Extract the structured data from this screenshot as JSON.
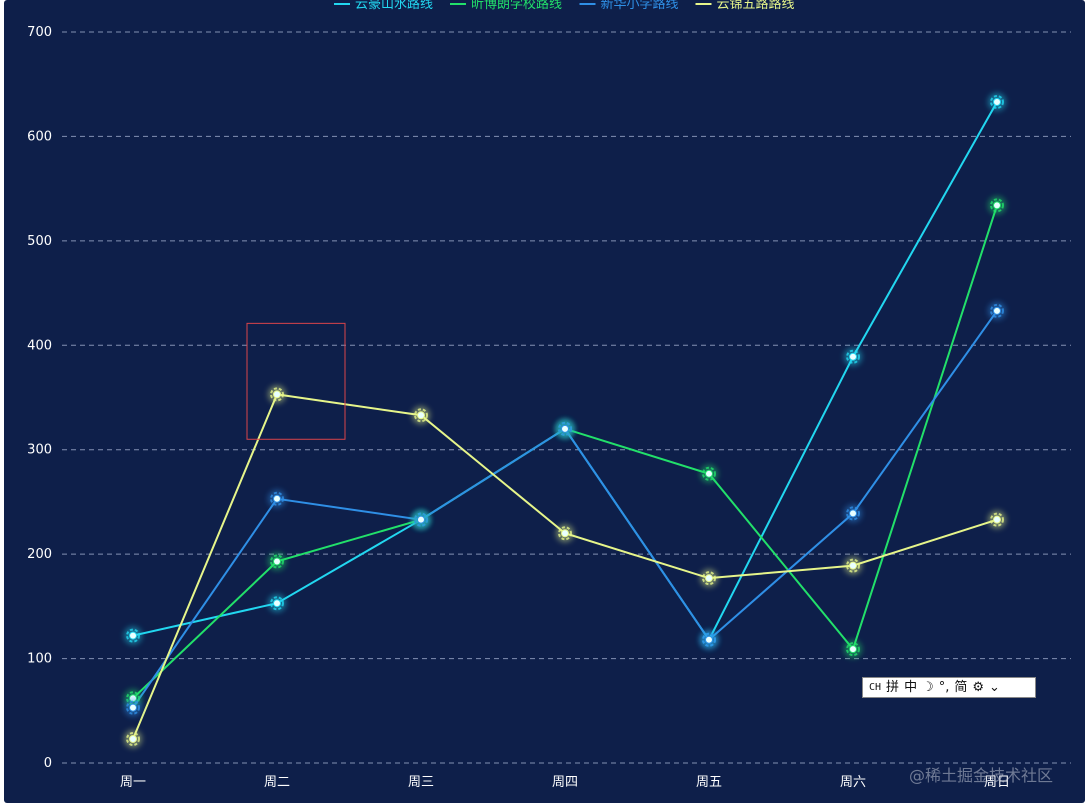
{
  "chart_data": {
    "type": "line",
    "categories": [
      "周一",
      "周二",
      "周三",
      "周四",
      "周五",
      "周六",
      "周日"
    ],
    "ylim": [
      0,
      700
    ],
    "yticks": [
      0,
      100,
      200,
      300,
      400,
      500,
      600,
      700
    ],
    "grid": true,
    "legend_position": "top-center",
    "series": [
      {
        "name": "云豪山水路线",
        "color": "#22d7f0",
        "values": [
          122,
          153,
          233,
          320,
          118,
          389,
          633
        ]
      },
      {
        "name": "昕博朗学校路线",
        "color": "#22e06a",
        "values": [
          62,
          193,
          233,
          320,
          277,
          109,
          534
        ]
      },
      {
        "name": "新华小学路线",
        "color": "#2f8fe6",
        "values": [
          53,
          253,
          233,
          320,
          118,
          239,
          433
        ]
      },
      {
        "name": "云锦五路路线",
        "color": "#e6f58a",
        "values": [
          23,
          353,
          333,
          220,
          177,
          189,
          233
        ]
      }
    ],
    "highlight": {
      "category": "周二",
      "range": [
        310,
        421
      ],
      "color": "#d9444a"
    }
  },
  "ime_toolbar": {
    "items": [
      "CH",
      "拼",
      "中",
      "☽",
      "°,",
      "简",
      "⚙",
      "⌄"
    ]
  },
  "watermark": "@稀土掘金技术社区"
}
